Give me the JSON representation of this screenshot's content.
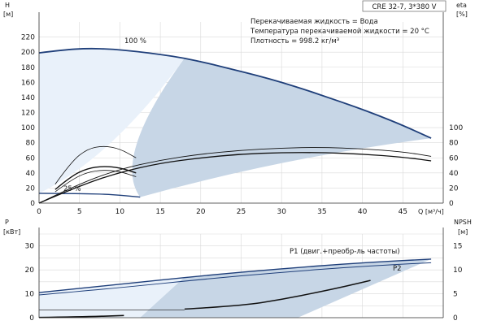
{
  "chart_data": [
    {
      "type": "line",
      "title": "CRE 32-7, 3*380 V",
      "xlabel": "Q [м³/ч]",
      "ylabel_left": "H\n[м]",
      "ylabel_right": "eta\n[%]",
      "xlim": [
        0,
        50
      ],
      "ylim_left": [
        0,
        240
      ],
      "ylim_right": [
        0,
        240
      ],
      "x_ticks": [
        0,
        5,
        10,
        15,
        20,
        25,
        30,
        35,
        40,
        45
      ],
      "y_ticks_left": [
        0,
        20,
        40,
        60,
        80,
        100,
        120,
        140,
        160,
        180,
        200,
        220
      ],
      "y_ticks_right": [
        0,
        20,
        40,
        60,
        80,
        100
      ],
      "grid": true,
      "annotations": [
        "Перекачиваемая жидкость = Вода",
        "Температура перекачиваемой жидкости = 20 °C",
        "Плотность = 998.2 кг/м³"
      ],
      "curve_labels": [
        "100 %",
        "25 %"
      ],
      "series": [
        {
          "label": "100 %",
          "x": [
            0,
            3,
            6,
            9,
            12,
            15,
            18,
            21,
            24,
            27,
            30,
            33,
            36,
            39,
            42,
            45,
            48.5
          ],
          "y": [
            199,
            203,
            205,
            204,
            201,
            197,
            192,
            185,
            177,
            169,
            160,
            150,
            139,
            128,
            116,
            103,
            86
          ]
        },
        {
          "label": "25 %",
          "x": [
            0,
            3,
            6,
            9,
            12.5
          ],
          "y": [
            13,
            12.8,
            12.4,
            11.5,
            8
          ]
        },
        {
          "axis": "right",
          "x": [
            0,
            5,
            10,
            15,
            20,
            25,
            30,
            35,
            40,
            45,
            48.5
          ],
          "y": [
            0,
            26,
            45,
            57,
            65,
            70,
            73,
            74,
            72,
            68,
            62
          ]
        },
        {
          "axis": "right",
          "x": [
            0,
            5,
            10,
            15,
            20,
            25,
            30,
            35,
            40,
            45,
            48.5
          ],
          "y": [
            0,
            23,
            41,
            53,
            60,
            65,
            67,
            67,
            65,
            61,
            56
          ]
        },
        {
          "axis": "right",
          "x": [
            2,
            4,
            6,
            8,
            10,
            12
          ],
          "y": [
            25,
            55,
            72,
            76,
            72,
            60
          ]
        },
        {
          "axis": "right",
          "x": [
            2,
            4,
            6,
            8,
            10,
            12
          ],
          "y": [
            18,
            36,
            46,
            49,
            47,
            40
          ]
        },
        {
          "axis": "right",
          "x": [
            2,
            4,
            6,
            8,
            10,
            12
          ],
          "y": [
            15,
            31,
            41,
            44,
            42,
            35
          ]
        }
      ]
    },
    {
      "type": "line",
      "ylabel_left": "P\n[кВт]",
      "ylabel_right": "NPSH\n[м]",
      "xlim": [
        0,
        50
      ],
      "ylim_left": [
        0,
        35
      ],
      "ylim_right": [
        0,
        17.5
      ],
      "y_ticks_left": [
        0,
        10,
        20,
        30
      ],
      "y_ticks_right": [
        0,
        5,
        10,
        15
      ],
      "grid": true,
      "series": [
        {
          "label": "P1 (двиг.+преобр-ль частоты)",
          "axis": "left",
          "x": [
            0,
            10,
            20,
            30,
            40,
            48.5
          ],
          "y": [
            10.5,
            14,
            17.5,
            20.5,
            23,
            24.5
          ]
        },
        {
          "label": "P2",
          "axis": "left",
          "x": [
            0,
            10,
            20,
            30,
            40,
            48.5
          ],
          "y": [
            9.5,
            12.5,
            16,
            19,
            21.5,
            23
          ]
        },
        {
          "axis": "right",
          "x": [
            18,
            25,
            30,
            35,
            38,
            41
          ],
          "y": [
            1.8,
            2.5,
            3.8,
            5.5,
            6.6,
            7.8
          ]
        },
        {
          "axis": "left",
          "x": [
            0,
            5,
            10.5
          ],
          "y": [
            0.1,
            0.3,
            0.9
          ]
        }
      ]
    }
  ]
}
